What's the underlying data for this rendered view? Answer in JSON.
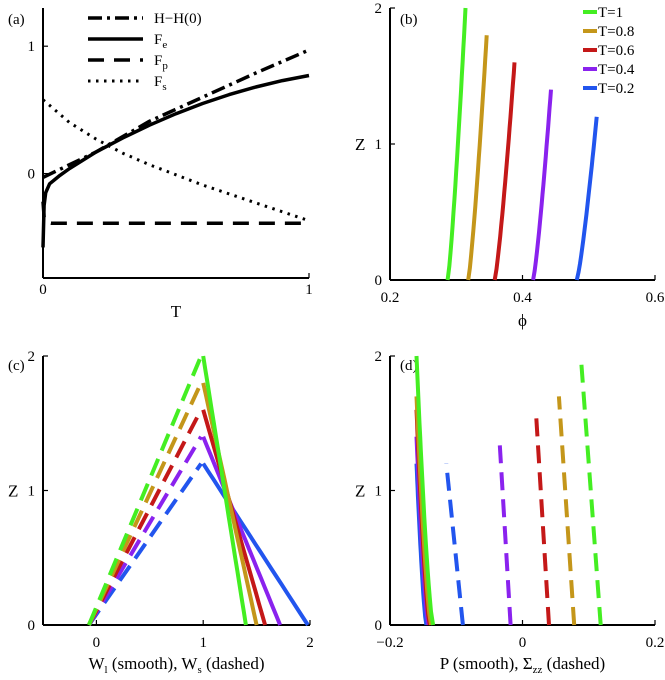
{
  "chart_data": [
    {
      "panel": "a",
      "type": "line",
      "panel_label": "(a)",
      "xlabel": "T",
      "ylabel": "",
      "xlim": [
        0,
        1
      ],
      "ylim": [
        -0.82,
        1.3
      ],
      "xticks": [
        {
          "v": 0,
          "label": "0"
        },
        {
          "v": 1,
          "label": "1"
        }
      ],
      "yticks": [
        {
          "v": 0,
          "label": "0"
        },
        {
          "v": 1,
          "label": "1"
        }
      ],
      "legend_position": "top-center",
      "series": [
        {
          "name": "H−H(0)",
          "style": "dashdot",
          "sub": "",
          "x": [
            0,
            0.2,
            0.4,
            0.6,
            0.8,
            1.0
          ],
          "y": [
            -0.03,
            0.17,
            0.41,
            0.6,
            0.79,
            0.97
          ]
        },
        {
          "name": "F",
          "style": "solid",
          "sub": "e",
          "x": [
            0,
            0.004,
            0.01,
            0.025,
            0.06,
            0.1,
            0.2,
            0.3,
            0.4,
            0.5,
            0.6,
            0.7,
            0.8,
            0.9,
            1.0
          ],
          "y": [
            -0.58,
            -0.25,
            -0.15,
            -0.08,
            -0.02,
            0.04,
            0.17,
            0.28,
            0.38,
            0.47,
            0.55,
            0.62,
            0.68,
            0.73,
            0.77
          ]
        },
        {
          "name": "F",
          "style": "dashed",
          "sub": "p",
          "x": [
            0,
            0.004,
            0.01,
            0.03,
            0.1,
            1.0
          ],
          "y": [
            -0.22,
            -0.34,
            -0.38,
            -0.39,
            -0.39,
            -0.39
          ]
        },
        {
          "name": "F",
          "style": "dotted",
          "sub": "s",
          "x": [
            0,
            0.1,
            0.2,
            0.3,
            0.4,
            0.5,
            0.6,
            0.7,
            0.8,
            0.9,
            1.0
          ],
          "y": [
            0.58,
            0.4,
            0.27,
            0.16,
            0.07,
            -0.01,
            -0.09,
            -0.16,
            -0.23,
            -0.3,
            -0.37
          ]
        }
      ]
    },
    {
      "panel": "b",
      "type": "line",
      "panel_label": "(b)",
      "xlabel": "ϕ",
      "ylabel": "Z",
      "xlim": [
        0.2,
        0.6
      ],
      "ylim": [
        0,
        2
      ],
      "xticks": [
        {
          "v": 0.2,
          "label": "0.2"
        },
        {
          "v": 0.4,
          "label": "0.4"
        },
        {
          "v": 0.6,
          "label": "0.6"
        }
      ],
      "yticks": [
        {
          "v": 0,
          "label": "0"
        },
        {
          "v": 1,
          "label": "1"
        },
        {
          "v": 2,
          "label": "2"
        }
      ],
      "legend_position": "top-right",
      "series": [
        {
          "name": "T=1",
          "color": "#44ee22",
          "x_bottom": 0.287,
          "x_top": 0.314,
          "z_top": 2.0
        },
        {
          "name": "T=0.8",
          "color": "#c4961a",
          "x_bottom": 0.318,
          "x_top": 0.346,
          "z_top": 1.8
        },
        {
          "name": "T=0.6",
          "color": "#c41818",
          "x_bottom": 0.358,
          "x_top": 0.388,
          "z_top": 1.6
        },
        {
          "name": "T=0.4",
          "color": "#8a22ee",
          "x_bottom": 0.416,
          "x_top": 0.443,
          "z_top": 1.4
        },
        {
          "name": "T=0.2",
          "color": "#2255ee",
          "x_bottom": 0.482,
          "x_top": 0.512,
          "z_top": 1.2
        }
      ]
    },
    {
      "panel": "c",
      "type": "line",
      "panel_label": "(c)",
      "xlabel": "W",
      "xlabel_sub": "l",
      "xlabel_rest": " (smooth), W",
      "xlabel_sub2": "s",
      "xlabel_tail": " (dashed)",
      "ylabel": "Z",
      "xlim": [
        -0.5,
        2
      ],
      "ylim": [
        0,
        2
      ],
      "xticks": [
        {
          "v": 0,
          "label": "0"
        },
        {
          "v": 1,
          "label": "1"
        },
        {
          "v": 2,
          "label": "2"
        }
      ],
      "yticks": [
        {
          "v": 0,
          "label": "0"
        },
        {
          "v": 1,
          "label": "1"
        },
        {
          "v": 2,
          "label": "2"
        }
      ],
      "series": [
        {
          "name": "T=1",
          "color": "#44ee22",
          "z_top": 2.0,
          "wl_bottom": 1.4,
          "ws_peak": 1.0
        },
        {
          "name": "T=0.8",
          "color": "#c4961a",
          "z_top": 1.8,
          "wl_bottom": 1.5,
          "ws_peak": 1.0
        },
        {
          "name": "T=0.6",
          "color": "#c41818",
          "z_top": 1.6,
          "wl_bottom": 1.58,
          "ws_peak": 1.0
        },
        {
          "name": "T=0.4",
          "color": "#8a22ee",
          "z_top": 1.4,
          "wl_bottom": 1.72,
          "ws_peak": 1.0
        },
        {
          "name": "T=0.2",
          "color": "#2255ee",
          "z_top": 1.2,
          "wl_bottom": 1.98,
          "ws_peak": 1.0
        }
      ]
    },
    {
      "panel": "d",
      "type": "line",
      "panel_label": "(d)",
      "xlabel": "P (smooth), Σ",
      "xlabel_sub": "zz",
      "xlabel_tail": " (dashed)",
      "ylabel": "Z",
      "xlim": [
        -0.2,
        0.2
      ],
      "ylim": [
        0,
        2
      ],
      "xticks": [
        {
          "v": -0.2,
          "label": "−0.2"
        },
        {
          "v": 0,
          "label": "0"
        },
        {
          "v": 0.2,
          "label": "0.2"
        }
      ],
      "yticks": [
        {
          "v": 0,
          "label": "0"
        },
        {
          "v": 1,
          "label": "1"
        },
        {
          "v": 2,
          "label": "2"
        }
      ],
      "series": [
        {
          "name": "T=1",
          "color": "#44ee22",
          "z_top": 2.0,
          "p_top": -0.16,
          "p_bottom": -0.135,
          "szz_top": 0.088,
          "szz_bottom": 0.118
        },
        {
          "name": "T=0.8",
          "color": "#c4961a",
          "z_top": 1.7,
          "p_top": -0.16,
          "p_bottom": -0.138,
          "szz_top": 0.055,
          "szz_bottom": 0.078
        },
        {
          "name": "T=0.6",
          "color": "#c41818",
          "z_top": 1.6,
          "p_top": -0.16,
          "p_bottom": -0.14,
          "szz_top": 0.02,
          "szz_bottom": 0.04
        },
        {
          "name": "T=0.4",
          "color": "#8a22ee",
          "z_top": 1.4,
          "p_top": -0.16,
          "p_bottom": -0.142,
          "szz_top": -0.035,
          "szz_bottom": -0.018
        },
        {
          "name": "T=0.2",
          "color": "#2255ee",
          "z_top": 1.2,
          "p_top": -0.16,
          "p_bottom": -0.145,
          "szz_top": -0.115,
          "szz_bottom": -0.09
        }
      ]
    }
  ]
}
